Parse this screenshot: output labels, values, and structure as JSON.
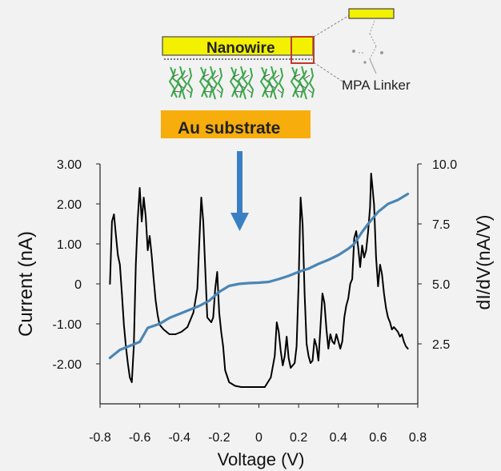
{
  "schematic": {
    "nanowire_label": "Nanowire",
    "substrate_label": "Au substrate",
    "linker_label": "MPA Linker"
  },
  "colors": {
    "background": "#f2f2f2",
    "nanowire": "#f3f000",
    "substrate": "#f7ad0c",
    "linker": "#3aa84a",
    "arrow": "#3a7fc4",
    "current_line": "#000000",
    "didv_line": "#4a86b5",
    "highlight_box": "#c0392b"
  },
  "chart_data": {
    "type": "line",
    "xlabel": "Voltage (V)",
    "ylabel": "Current (nA)",
    "y2label": "dI/dV(nA/V)",
    "xlim": [
      -0.8,
      0.8
    ],
    "ylim": [
      -3.0,
      3.0
    ],
    "y2lim": [
      0.0,
      10.0
    ],
    "x_ticks": [
      "-0.8",
      "-0.6",
      "-0.4",
      "-0.2",
      "0",
      "0.2",
      "0.4",
      "0.6",
      "0.8"
    ],
    "y_ticks": [
      "3.00",
      "2.00",
      "1.00",
      "0",
      "-1.00",
      "-2.00"
    ],
    "y2_ticks": [
      "10.0",
      "7.5",
      "5.0",
      "2.5"
    ],
    "series": [
      {
        "axis": "right",
        "color": "#000000",
        "x": [
          -0.75,
          -0.74,
          -0.73,
          -0.72,
          -0.71,
          -0.7,
          -0.69,
          -0.68,
          -0.67,
          -0.66,
          -0.65,
          -0.64,
          -0.63,
          -0.62,
          -0.61,
          -0.6,
          -0.59,
          -0.58,
          -0.57,
          -0.56,
          -0.55,
          -0.54,
          -0.53,
          -0.52,
          -0.51,
          -0.5,
          -0.48,
          -0.45,
          -0.42,
          -0.39,
          -0.36,
          -0.33,
          -0.31,
          -0.3,
          -0.29,
          -0.28,
          -0.27,
          -0.26,
          -0.25,
          -0.24,
          -0.23,
          -0.22,
          -0.21,
          -0.2,
          -0.19,
          -0.18,
          -0.17,
          -0.15,
          -0.12,
          -0.09,
          -0.06,
          -0.03,
          0.0,
          0.03,
          0.06,
          0.08,
          0.09,
          0.1,
          0.11,
          0.12,
          0.13,
          0.14,
          0.15,
          0.16,
          0.17,
          0.18,
          0.19,
          0.2,
          0.21,
          0.22,
          0.23,
          0.24,
          0.25,
          0.26,
          0.27,
          0.28,
          0.29,
          0.3,
          0.31,
          0.32,
          0.33,
          0.34,
          0.35,
          0.36,
          0.37,
          0.38,
          0.39,
          0.4,
          0.41,
          0.42,
          0.43,
          0.44,
          0.45,
          0.46,
          0.47,
          0.48,
          0.49,
          0.5,
          0.51,
          0.52,
          0.53,
          0.54,
          0.55,
          0.56,
          0.565,
          0.57,
          0.58,
          0.59,
          0.6,
          0.61,
          0.62,
          0.63,
          0.64,
          0.65,
          0.66,
          0.67,
          0.68,
          0.69,
          0.7,
          0.71,
          0.72,
          0.73,
          0.74,
          0.75
        ],
        "values": [
          5.0,
          7.6,
          7.9,
          7.0,
          6.2,
          5.8,
          4.6,
          3.3,
          2.4,
          1.7,
          1.1,
          0.9,
          2.4,
          5.8,
          7.7,
          9.0,
          7.6,
          8.6,
          7.8,
          6.4,
          7.0,
          6.2,
          5.2,
          4.3,
          3.7,
          3.3,
          3.1,
          2.9,
          2.9,
          3.0,
          3.2,
          3.8,
          4.8,
          6.8,
          8.6,
          7.6,
          5.6,
          3.6,
          3.5,
          3.4,
          3.6,
          4.8,
          5.5,
          3.8,
          3.0,
          2.4,
          1.4,
          0.9,
          0.75,
          0.7,
          0.7,
          0.7,
          0.7,
          0.7,
          1.1,
          2.0,
          3.4,
          3.0,
          2.2,
          1.6,
          2.0,
          2.8,
          1.9,
          1.5,
          1.6,
          1.7,
          2.4,
          5.0,
          8.6,
          7.5,
          4.6,
          2.5,
          2.0,
          1.7,
          1.8,
          2.7,
          2.4,
          1.8,
          3.2,
          4.6,
          4.2,
          3.1,
          2.3,
          2.9,
          2.6,
          2.5,
          2.9,
          2.6,
          2.3,
          2.6,
          3.6,
          4.1,
          4.4,
          5.0,
          5.2,
          6.9,
          7.2,
          6.5,
          5.7,
          6.6,
          6.1,
          6.4,
          7.2,
          8.2,
          9.6,
          9.2,
          8.3,
          6.1,
          4.9,
          5.8,
          5.4,
          4.6,
          4.0,
          3.6,
          3.4,
          3.1,
          3.2,
          3.1,
          3.0,
          2.8,
          2.9,
          2.6,
          2.4,
          2.3
        ]
      },
      {
        "axis": "left",
        "color": "#4a86b5",
        "x": [
          -0.75,
          -0.7,
          -0.65,
          -0.6,
          -0.56,
          -0.5,
          -0.45,
          -0.4,
          -0.35,
          -0.3,
          -0.25,
          -0.2,
          -0.15,
          -0.1,
          -0.05,
          0.0,
          0.05,
          0.1,
          0.15,
          0.2,
          0.25,
          0.3,
          0.35,
          0.4,
          0.45,
          0.48,
          0.52,
          0.55,
          0.6,
          0.65,
          0.7,
          0.75
        ],
        "values": [
          -1.85,
          -1.65,
          -1.55,
          -1.45,
          -1.1,
          -1.0,
          -0.85,
          -0.75,
          -0.65,
          -0.55,
          -0.42,
          -0.2,
          -0.05,
          0.0,
          0.02,
          0.03,
          0.05,
          0.12,
          0.2,
          0.3,
          0.38,
          0.5,
          0.6,
          0.72,
          0.88,
          1.0,
          1.3,
          1.5,
          1.8,
          2.0,
          2.1,
          2.25
        ]
      }
    ]
  }
}
